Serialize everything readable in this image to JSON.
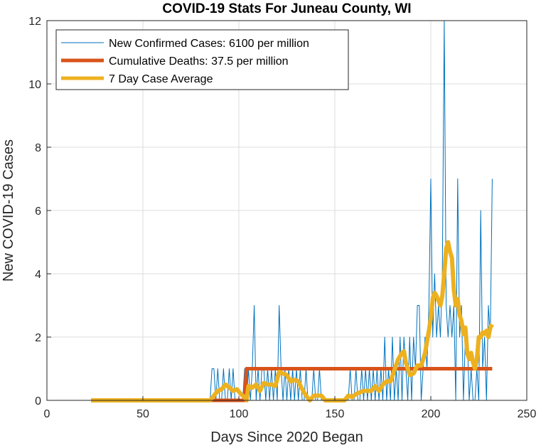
{
  "chart_data": {
    "type": "line",
    "title": "COVID-19 Stats For Juneau County, WI",
    "xlabel": "Days Since 2020 Began",
    "ylabel": "New COVID-19 Cases",
    "xlim": [
      0,
      250
    ],
    "ylim": [
      0,
      12
    ],
    "xticks": [
      0,
      50,
      100,
      150,
      200,
      250
    ],
    "yticks": [
      0,
      2,
      4,
      6,
      8,
      10,
      12
    ],
    "grid": true,
    "legend_position": "top-left",
    "series": [
      {
        "name": "New Confirmed Cases: 6100 per million",
        "color": "#0072BD",
        "points": [
          [
            23,
            0
          ],
          [
            84,
            0
          ],
          [
            85,
            0
          ],
          [
            86,
            1
          ],
          [
            87,
            1
          ],
          [
            88,
            0
          ],
          [
            89,
            1
          ],
          [
            90,
            0
          ],
          [
            91,
            0
          ],
          [
            92,
            1
          ],
          [
            93,
            0
          ],
          [
            94,
            0
          ],
          [
            95,
            1
          ],
          [
            96,
            0
          ],
          [
            97,
            1
          ],
          [
            98,
            0
          ],
          [
            99,
            0
          ],
          [
            100,
            0
          ],
          [
            101,
            0
          ],
          [
            102,
            0
          ],
          [
            103,
            1
          ],
          [
            104,
            0
          ],
          [
            105,
            1
          ],
          [
            106,
            0
          ],
          [
            107,
            1
          ],
          [
            108,
            3
          ],
          [
            109,
            0
          ],
          [
            110,
            1
          ],
          [
            111,
            0
          ],
          [
            112,
            1
          ],
          [
            113,
            1
          ],
          [
            114,
            0
          ],
          [
            115,
            1
          ],
          [
            116,
            0
          ],
          [
            117,
            1
          ],
          [
            118,
            0
          ],
          [
            119,
            1
          ],
          [
            120,
            0
          ],
          [
            121,
            3
          ],
          [
            122,
            1
          ],
          [
            123,
            0
          ],
          [
            124,
            1
          ],
          [
            125,
            0
          ],
          [
            126,
            1
          ],
          [
            127,
            0
          ],
          [
            128,
            1
          ],
          [
            129,
            0
          ],
          [
            130,
            1
          ],
          [
            131,
            0
          ],
          [
            132,
            1
          ],
          [
            133,
            0
          ],
          [
            134,
            0
          ],
          [
            135,
            1
          ],
          [
            136,
            0
          ],
          [
            137,
            0
          ],
          [
            138,
            0
          ],
          [
            139,
            1
          ],
          [
            140,
            0
          ],
          [
            141,
            0
          ],
          [
            142,
            1
          ],
          [
            143,
            0
          ],
          [
            144,
            0
          ],
          [
            145,
            0
          ],
          [
            146,
            0
          ],
          [
            147,
            0
          ],
          [
            148,
            0
          ],
          [
            149,
            0
          ],
          [
            150,
            0
          ],
          [
            151,
            0
          ],
          [
            152,
            0
          ],
          [
            153,
            0
          ],
          [
            154,
            0
          ],
          [
            155,
            0
          ],
          [
            156,
            0
          ],
          [
            157,
            0
          ],
          [
            158,
            1
          ],
          [
            159,
            0
          ],
          [
            160,
            0
          ],
          [
            161,
            1
          ],
          [
            162,
            0
          ],
          [
            163,
            0
          ],
          [
            164,
            1
          ],
          [
            165,
            0
          ],
          [
            166,
            1
          ],
          [
            167,
            0
          ],
          [
            168,
            1
          ],
          [
            169,
            0
          ],
          [
            170,
            1
          ],
          [
            171,
            0
          ],
          [
            172,
            1
          ],
          [
            173,
            0
          ],
          [
            174,
            1
          ],
          [
            175,
            0
          ],
          [
            176,
            2
          ],
          [
            177,
            0
          ],
          [
            178,
            1
          ],
          [
            179,
            0
          ],
          [
            180,
            2
          ],
          [
            181,
            0
          ],
          [
            182,
            1
          ],
          [
            183,
            0
          ],
          [
            184,
            2
          ],
          [
            185,
            0
          ],
          [
            186,
            2
          ],
          [
            187,
            1
          ],
          [
            188,
            0
          ],
          [
            189,
            2
          ],
          [
            190,
            0
          ],
          [
            191,
            2
          ],
          [
            192,
            1
          ],
          [
            193,
            3
          ],
          [
            194,
            3
          ],
          [
            195,
            0
          ],
          [
            196,
            1
          ],
          [
            197,
            2
          ],
          [
            198,
            1
          ],
          [
            199,
            3
          ],
          [
            200,
            7
          ],
          [
            201,
            2
          ],
          [
            202,
            4
          ],
          [
            203,
            2
          ],
          [
            204,
            3
          ],
          [
            205,
            2
          ],
          [
            206,
            4
          ],
          [
            207,
            12
          ],
          [
            208,
            3
          ],
          [
            209,
            2
          ],
          [
            210,
            3
          ],
          [
            211,
            2
          ],
          [
            212,
            3
          ],
          [
            213,
            0
          ],
          [
            214,
            7
          ],
          [
            215,
            2
          ],
          [
            216,
            3
          ],
          [
            217,
            0
          ],
          [
            218,
            2
          ],
          [
            219,
            2
          ],
          [
            220,
            0
          ],
          [
            221,
            1
          ],
          [
            222,
            0
          ],
          [
            223,
            0
          ],
          [
            224,
            1
          ],
          [
            225,
            0
          ],
          [
            226,
            6
          ],
          [
            227,
            1
          ],
          [
            228,
            2
          ],
          [
            229,
            0
          ],
          [
            230,
            3
          ],
          [
            231,
            2
          ],
          [
            232,
            7
          ]
        ]
      },
      {
        "name": "Cumulative Deaths: 37.5 per million",
        "color": "#D95319",
        "points": [
          [
            23,
            0
          ],
          [
            103,
            0
          ],
          [
            104,
            1
          ],
          [
            232,
            1
          ]
        ]
      },
      {
        "name": "7 Day Case Average",
        "color": "#EDB120",
        "points": [
          [
            23,
            0
          ],
          [
            85,
            0
          ],
          [
            87,
            0.15
          ],
          [
            89,
            0.3
          ],
          [
            91,
            0.35
          ],
          [
            93,
            0.5
          ],
          [
            95,
            0.4
          ],
          [
            97,
            0.3
          ],
          [
            99,
            0.35
          ],
          [
            101,
            0.2
          ],
          [
            103,
            0.1
          ],
          [
            104,
            0.0
          ],
          [
            105,
            0.45
          ],
          [
            107,
            0.4
          ],
          [
            109,
            0.5
          ],
          [
            111,
            0.3
          ],
          [
            113,
            0.55
          ],
          [
            115,
            0.5
          ],
          [
            117,
            0.5
          ],
          [
            119,
            0.45
          ],
          [
            121,
            0.9
          ],
          [
            123,
            0.85
          ],
          [
            125,
            0.8
          ],
          [
            127,
            0.6
          ],
          [
            129,
            0.65
          ],
          [
            131,
            0.6
          ],
          [
            133,
            0.35
          ],
          [
            135,
            0.15
          ],
          [
            137,
            0.0
          ],
          [
            139,
            0.15
          ],
          [
            141,
            0.15
          ],
          [
            143,
            0.15
          ],
          [
            145,
            0.0
          ],
          [
            155,
            0.0
          ],
          [
            157,
            0.15
          ],
          [
            159,
            0.1
          ],
          [
            161,
            0.2
          ],
          [
            163,
            0.25
          ],
          [
            165,
            0.3
          ],
          [
            167,
            0.3
          ],
          [
            169,
            0.3
          ],
          [
            171,
            0.45
          ],
          [
            173,
            0.3
          ],
          [
            175,
            0.5
          ],
          [
            177,
            0.6
          ],
          [
            179,
            0.6
          ],
          [
            181,
            0.95
          ],
          [
            183,
            1.3
          ],
          [
            185,
            1.5
          ],
          [
            186,
            1.55
          ],
          [
            187,
            1.2
          ],
          [
            189,
            0.8
          ],
          [
            191,
            0.85
          ],
          [
            193,
            1.1
          ],
          [
            195,
            1.1
          ],
          [
            197,
            1.5
          ],
          [
            199,
            2.2
          ],
          [
            200,
            2.6
          ],
          [
            201,
            3.2
          ],
          [
            202,
            3.4
          ],
          [
            203,
            3.3
          ],
          [
            205,
            3.0
          ],
          [
            206,
            3.3
          ],
          [
            207,
            4.0
          ],
          [
            208,
            4.8
          ],
          [
            209,
            5.0
          ],
          [
            210,
            4.7
          ],
          [
            211,
            4.5
          ],
          [
            212,
            3.5
          ],
          [
            213,
            3.0
          ],
          [
            214,
            3.2
          ],
          [
            215,
            2.7
          ],
          [
            216,
            2.5
          ],
          [
            217,
            2.1
          ],
          [
            218,
            2.3
          ],
          [
            219,
            1.5
          ],
          [
            220,
            1.3
          ],
          [
            221,
            1.5
          ],
          [
            222,
            1.2
          ],
          [
            223,
            1.0
          ],
          [
            224,
            1.3
          ],
          [
            225,
            2.0
          ],
          [
            226,
            2.0
          ],
          [
            227,
            2.15
          ],
          [
            228,
            2.1
          ],
          [
            229,
            2.2
          ],
          [
            230,
            2.0
          ],
          [
            231,
            2.3
          ],
          [
            232,
            2.4
          ]
        ]
      }
    ]
  }
}
